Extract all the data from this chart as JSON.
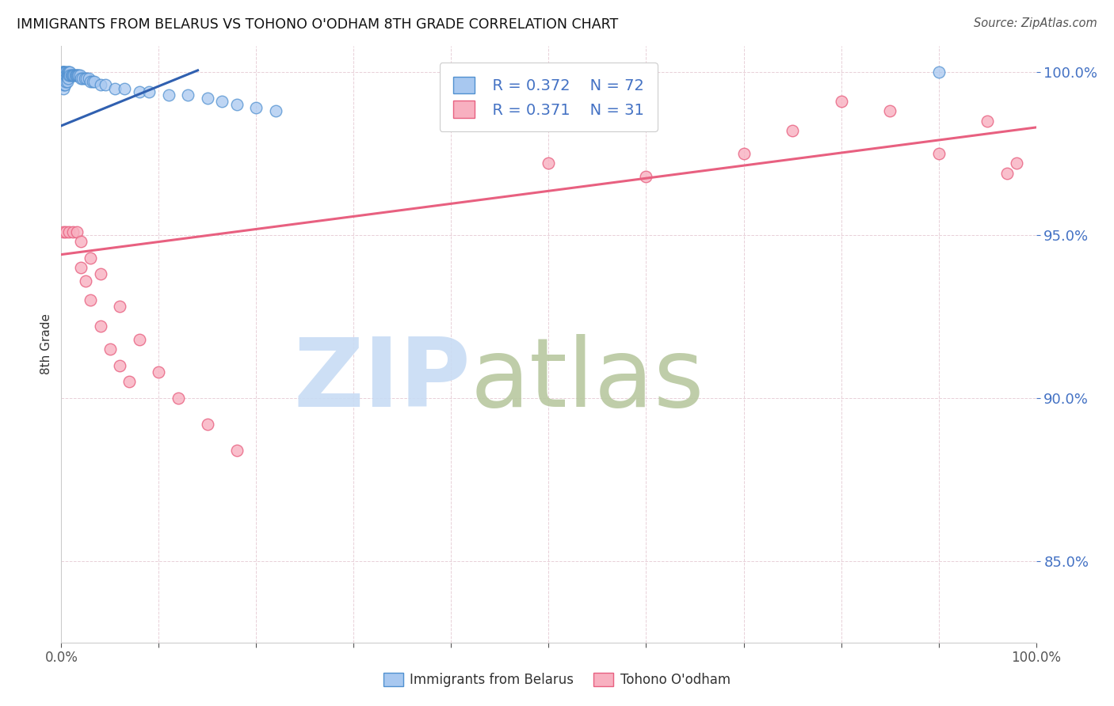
{
  "title": "IMMIGRANTS FROM BELARUS VS TOHONO O'ODHAM 8TH GRADE CORRELATION CHART",
  "source": "Source: ZipAtlas.com",
  "ylabel": "8th Grade",
  "xlim": [
    0.0,
    1.0
  ],
  "ylim": [
    0.825,
    1.008
  ],
  "yticks": [
    0.85,
    0.9,
    0.95,
    1.0
  ],
  "ytick_labels": [
    "85.0%",
    "90.0%",
    "95.0%",
    "100.0%"
  ],
  "xticks": [
    0.0,
    0.1,
    0.2,
    0.3,
    0.4,
    0.5,
    0.6,
    0.7,
    0.8,
    0.9,
    1.0
  ],
  "xtick_labels": [
    "0.0%",
    "",
    "",
    "",
    "",
    "",
    "",
    "",
    "",
    "",
    "100.0%"
  ],
  "blue_scatter_x": [
    0.001,
    0.001,
    0.001,
    0.001,
    0.001,
    0.001,
    0.001,
    0.002,
    0.002,
    0.002,
    0.002,
    0.002,
    0.002,
    0.002,
    0.003,
    0.003,
    0.003,
    0.003,
    0.003,
    0.003,
    0.004,
    0.004,
    0.004,
    0.004,
    0.004,
    0.005,
    0.005,
    0.005,
    0.005,
    0.006,
    0.006,
    0.006,
    0.006,
    0.007,
    0.007,
    0.007,
    0.008,
    0.008,
    0.009,
    0.009,
    0.01,
    0.011,
    0.012,
    0.013,
    0.014,
    0.015,
    0.016,
    0.017,
    0.018,
    0.019,
    0.02,
    0.022,
    0.024,
    0.026,
    0.028,
    0.03,
    0.032,
    0.034,
    0.04,
    0.045,
    0.055,
    0.065,
    0.08,
    0.09,
    0.11,
    0.13,
    0.15,
    0.165,
    0.18,
    0.2,
    0.22,
    0.9
  ],
  "blue_scatter_y": [
    1.0,
    1.0,
    1.0,
    0.999,
    0.998,
    0.997,
    0.996,
    1.0,
    1.0,
    0.999,
    0.998,
    0.997,
    0.996,
    0.995,
    1.0,
    0.999,
    0.999,
    0.998,
    0.997,
    0.996,
    1.0,
    0.999,
    0.998,
    0.997,
    0.996,
    1.0,
    0.999,
    0.998,
    0.997,
    1.0,
    0.999,
    0.998,
    0.997,
    1.0,
    0.999,
    0.998,
    1.0,
    0.999,
    1.0,
    0.999,
    0.999,
    0.999,
    0.999,
    0.999,
    0.999,
    0.999,
    0.999,
    0.999,
    0.999,
    0.999,
    0.998,
    0.998,
    0.998,
    0.998,
    0.998,
    0.997,
    0.997,
    0.997,
    0.996,
    0.996,
    0.995,
    0.995,
    0.994,
    0.994,
    0.993,
    0.993,
    0.992,
    0.991,
    0.99,
    0.989,
    0.988,
    1.0
  ],
  "pink_scatter_x": [
    0.002,
    0.005,
    0.008,
    0.012,
    0.016,
    0.02,
    0.03,
    0.04,
    0.06,
    0.08,
    0.1,
    0.12,
    0.15,
    0.18,
    0.02,
    0.025,
    0.03,
    0.04,
    0.05,
    0.06,
    0.07,
    0.5,
    0.6,
    0.7,
    0.75,
    0.8,
    0.85,
    0.9,
    0.95,
    0.97,
    0.98
  ],
  "pink_scatter_y": [
    0.951,
    0.951,
    0.951,
    0.951,
    0.951,
    0.948,
    0.943,
    0.938,
    0.928,
    0.918,
    0.908,
    0.9,
    0.892,
    0.884,
    0.94,
    0.936,
    0.93,
    0.922,
    0.915,
    0.91,
    0.905,
    0.972,
    0.968,
    0.975,
    0.982,
    0.991,
    0.988,
    0.975,
    0.985,
    0.969,
    0.972
  ],
  "blue_line_x": [
    0.0,
    0.14
  ],
  "blue_line_y": [
    0.9835,
    1.0005
  ],
  "pink_line_x": [
    0.0,
    1.0
  ],
  "pink_line_y": [
    0.944,
    0.983
  ],
  "legend_R_blue": "R = 0.372",
  "legend_N_blue": "N = 72",
  "legend_R_pink": "R = 0.371",
  "legend_N_pink": "N = 31",
  "blue_scatter_color": "#A8C8F0",
  "blue_scatter_edge": "#5090D0",
  "pink_scatter_color": "#F8B0C0",
  "pink_scatter_edge": "#E86080",
  "blue_line_color": "#3060B0",
  "pink_line_color": "#E86080",
  "axis_color": "#4472C4",
  "grid_color": "#E8D0D8",
  "watermark_zip": "ZIP",
  "watermark_atlas": "atlas",
  "watermark_color_zip": "#C8DCF4",
  "watermark_color_atlas": "#B8C8A0",
  "background_color": "#FFFFFF",
  "legend_blue_label": "Immigrants from Belarus",
  "legend_pink_label": "Tohono O'odham"
}
